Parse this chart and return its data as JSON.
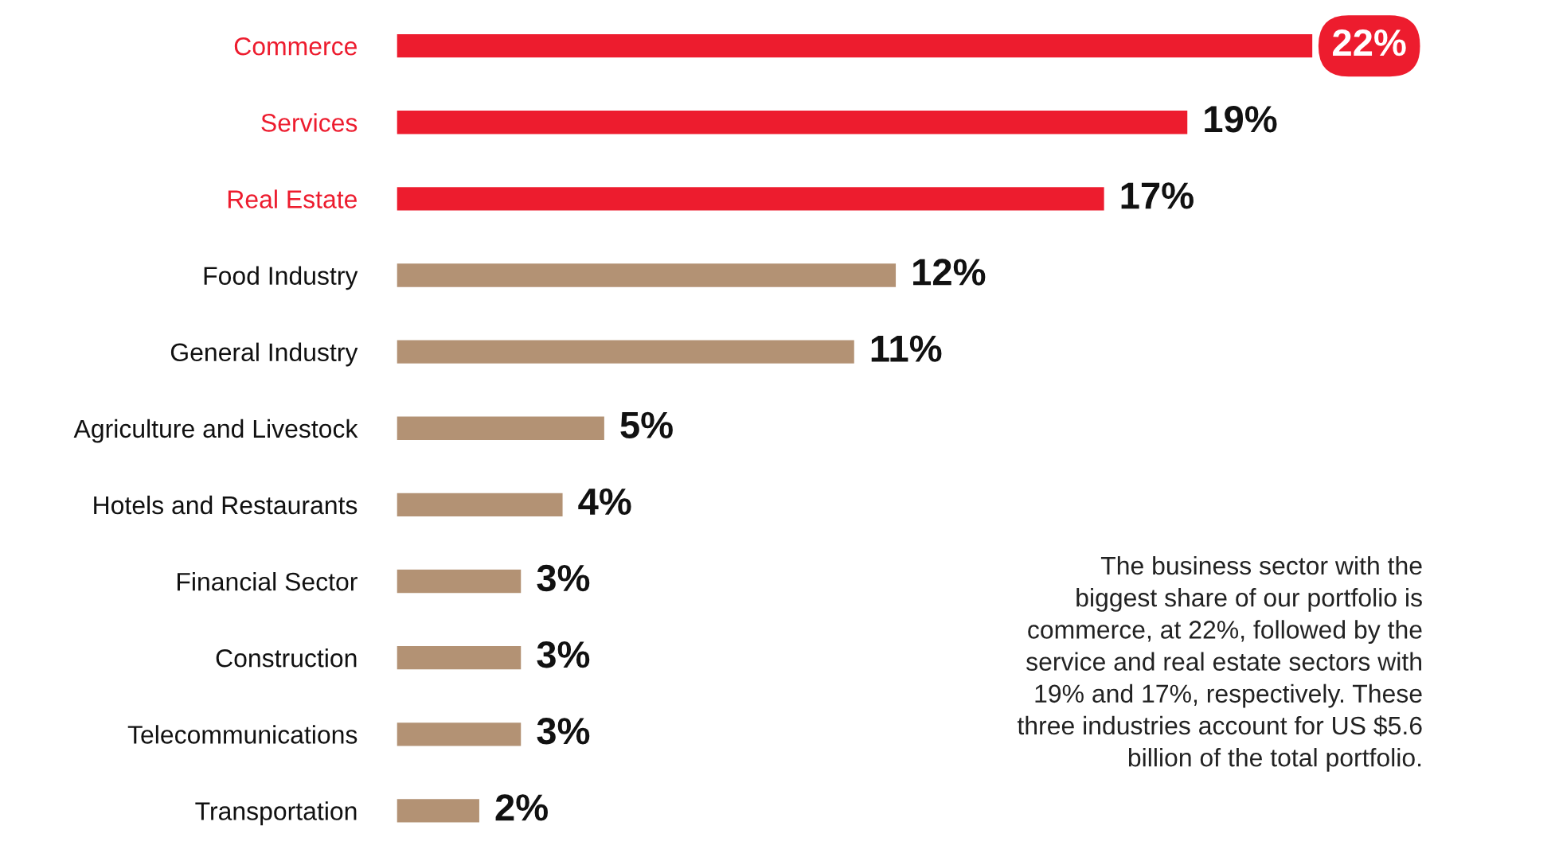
{
  "chart_data": {
    "type": "bar",
    "orientation": "horizontal",
    "categories": [
      "Commerce",
      "Services",
      "Real Estate",
      "Food Industry",
      "General Industry",
      "Agriculture and Livestock",
      "Hotels and Restaurants",
      "Financial Sector",
      "Construction",
      "Telecommunications",
      "Transportation"
    ],
    "values": [
      22,
      19,
      17,
      12,
      11,
      5,
      4,
      3,
      3,
      3,
      2
    ],
    "colors": [
      "#ed1c2e",
      "#ed1c2e",
      "#ed1c2e",
      "#b39274",
      "#b39274",
      "#b39274",
      "#b39274",
      "#b39274",
      "#b39274",
      "#b39274",
      "#b39274"
    ],
    "value_labels": [
      "22%",
      "19%",
      "17%",
      "12%",
      "11%",
      "5%",
      "4%",
      "3%",
      "3%",
      "3%",
      "2%"
    ],
    "annotations": [
      "The business sector with the\nbiggest share of our portfolio is\ncommerce, at 22%, followed by the\nservice and real estate sectors with\n19% and 17%, respectively. These\nthree industries account for US $5.6\nbillion of the total portfolio."
    ],
    "grid": false,
    "legend": false
  }
}
